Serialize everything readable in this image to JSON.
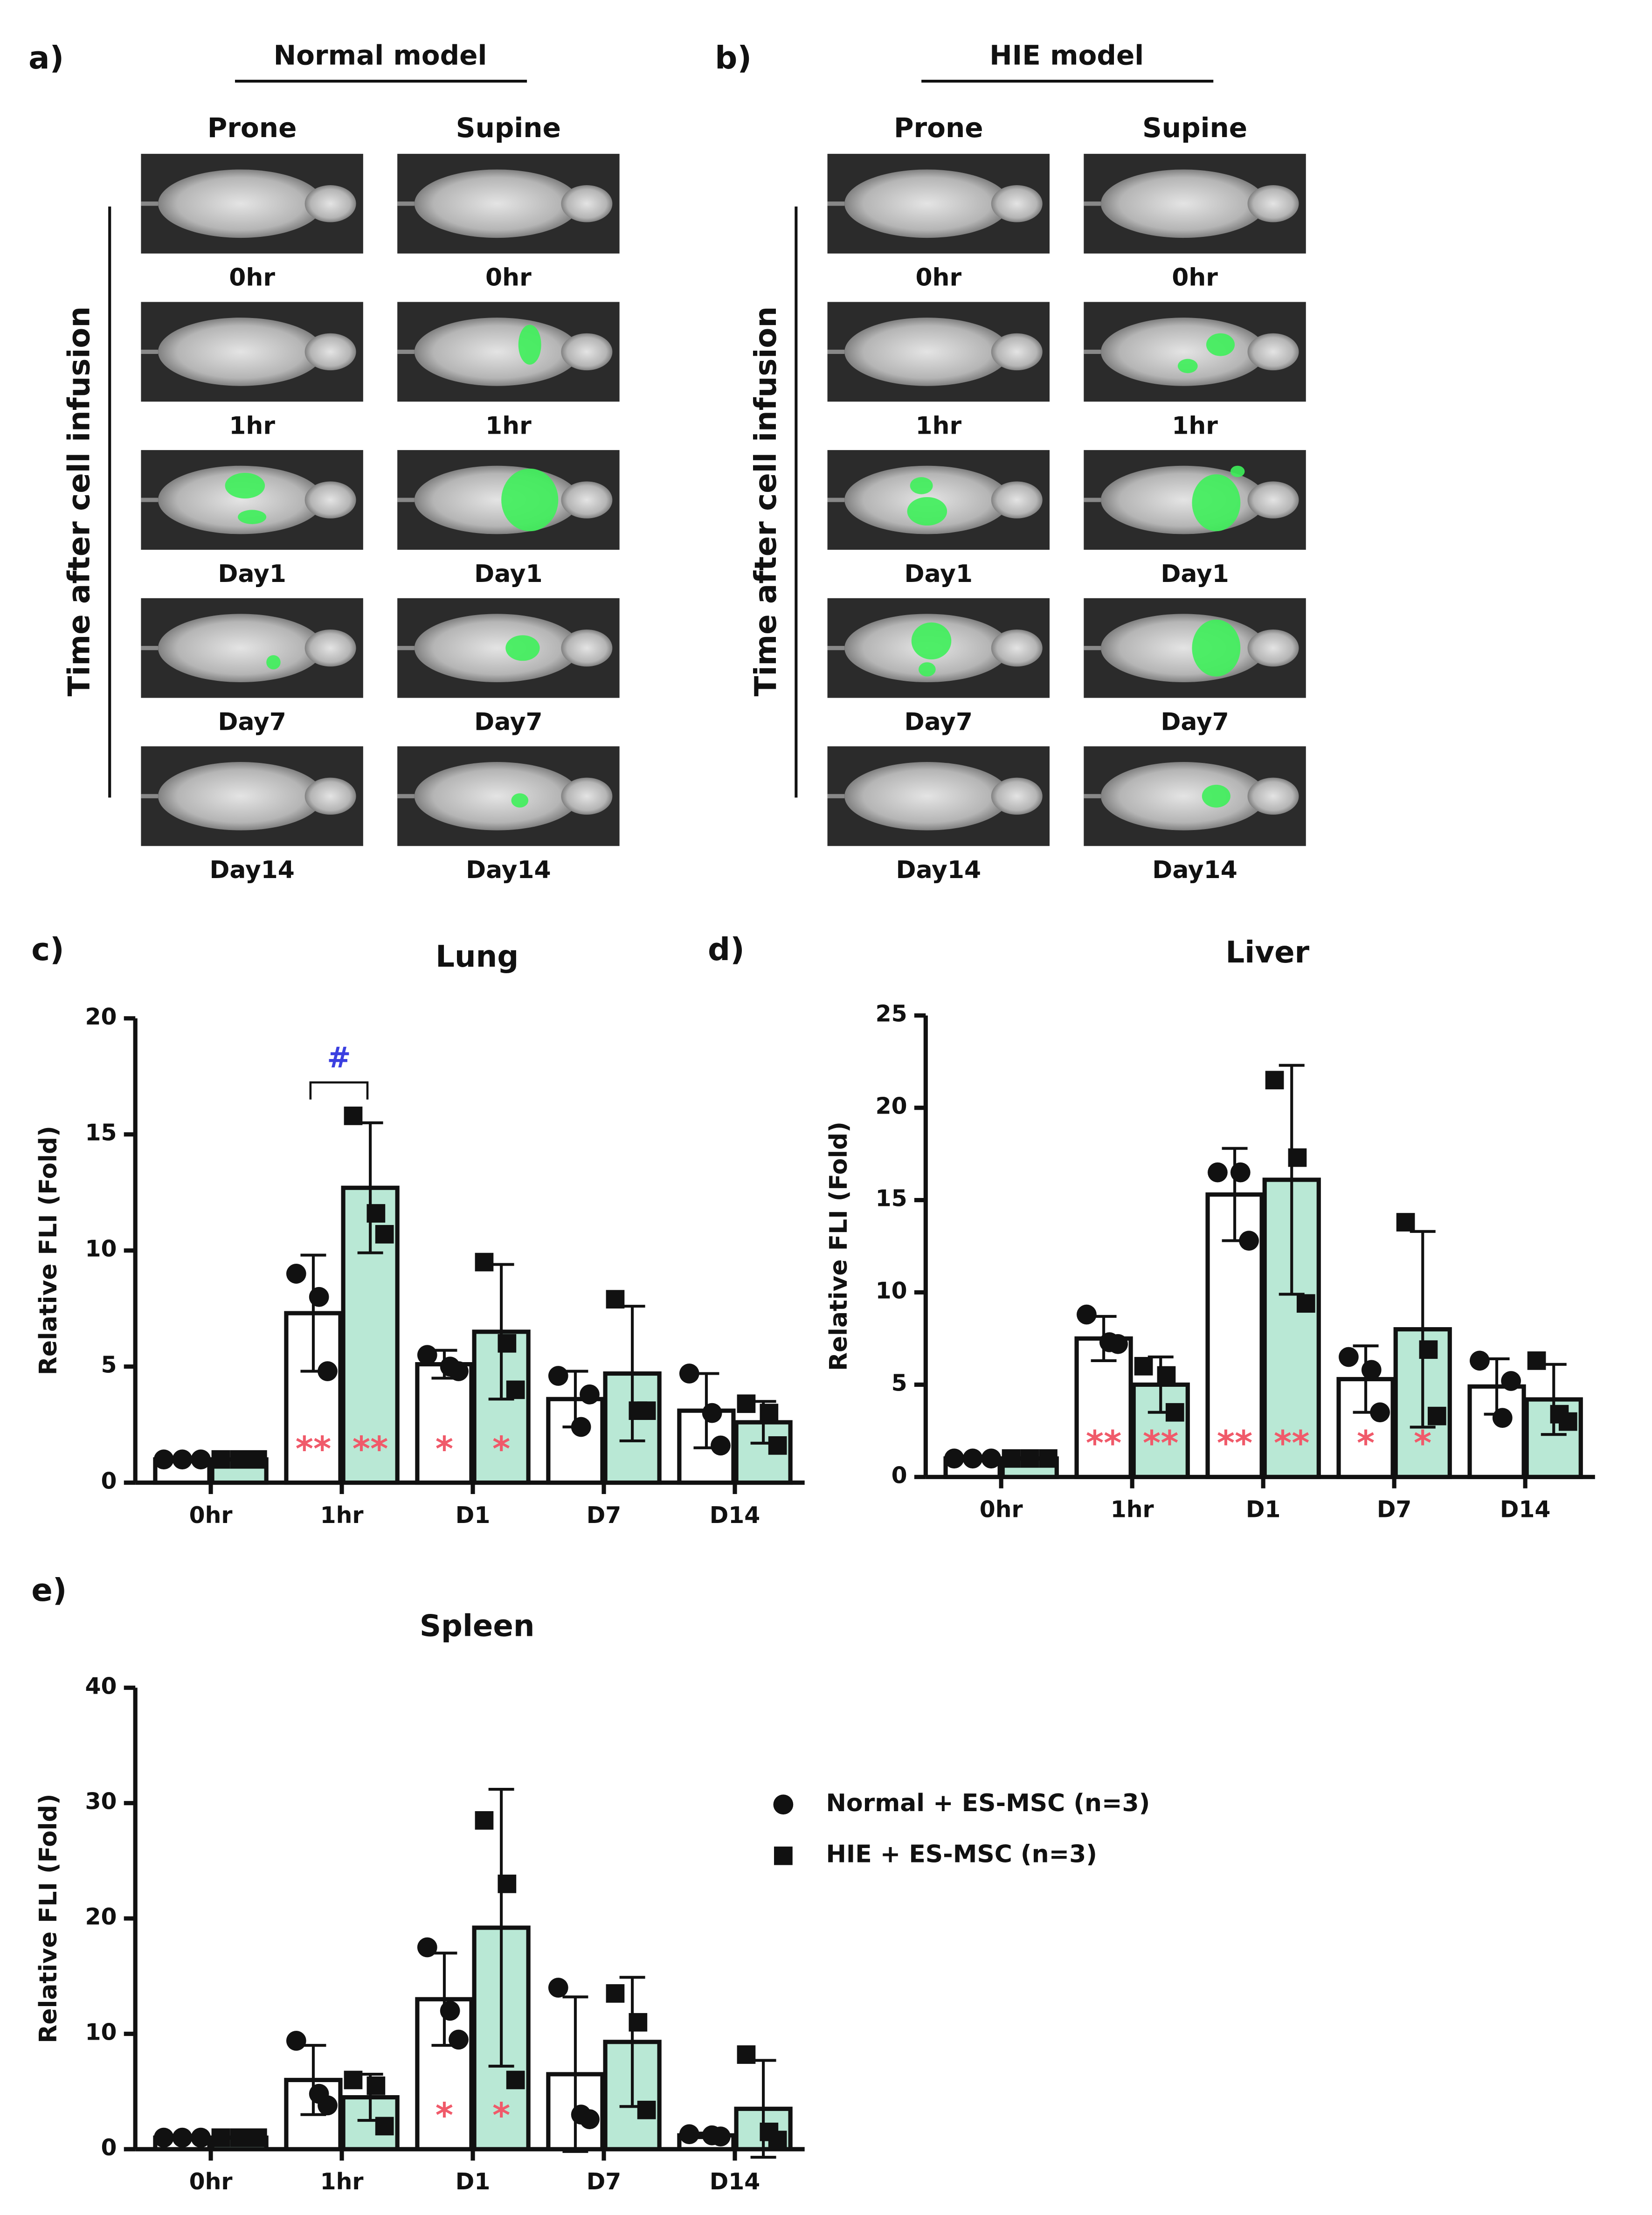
{
  "panels": {
    "a": {
      "label": "a)",
      "title": "Normal model",
      "columns": [
        "Prone",
        "Supine"
      ],
      "rows": [
        "0hr",
        "1hr",
        "Day1",
        "Day7",
        "Day14"
      ],
      "axis_label": "Time after cell infusion"
    },
    "b": {
      "label": "b)",
      "title": "HIE model",
      "columns": [
        "Prone",
        "Supine"
      ],
      "rows": [
        "0hr",
        "1hr",
        "Day1",
        "Day7",
        "Day14"
      ],
      "axis_label": "Time after cell infusion"
    }
  },
  "chart_data": [
    {
      "type": "bar",
      "panel_label": "c)",
      "title": "Lung",
      "ylabel": "Relative FLI (Fold)",
      "categories": [
        "0hr",
        "1hr",
        "D1",
        "D7",
        "D14"
      ],
      "ylim": [
        0,
        20
      ],
      "yticks": [
        0,
        5,
        10,
        15,
        20
      ],
      "annotation": "#",
      "annotation_color": "#3b3fe0",
      "series": [
        {
          "color": "#ffffff",
          "marker": "circle",
          "values": [
            1,
            7.3,
            5.1,
            3.6,
            3.1
          ],
          "errors": [
            0,
            2.5,
            0.6,
            1.2,
            1.6
          ],
          "points": [
            [
              1,
              1,
              1
            ],
            [
              9.0,
              8.0,
              4.8
            ],
            [
              5.5,
              5.0,
              4.8
            ],
            [
              4.6,
              2.4,
              3.8
            ],
            [
              4.7,
              3.0,
              1.6
            ]
          ],
          "significance": [
            null,
            "**",
            "*",
            null,
            null
          ]
        },
        {
          "color": "#b9e8d5",
          "marker": "square",
          "values": [
            1,
            12.7,
            6.5,
            4.7,
            2.6
          ],
          "errors": [
            0,
            2.8,
            2.9,
            2.9,
            0.9
          ],
          "points": [
            [
              1,
              1,
              1
            ],
            [
              15.8,
              11.6,
              10.7
            ],
            [
              9.5,
              6.0,
              4.0
            ],
            [
              7.9,
              3.1,
              3.1
            ],
            [
              3.4,
              3.0,
              1.6
            ]
          ],
          "significance": [
            null,
            "**",
            "*",
            null,
            null
          ]
        }
      ]
    },
    {
      "type": "bar",
      "panel_label": "d)",
      "title": "Liver",
      "ylabel": "Relative FLI (Fold)",
      "categories": [
        "0hr",
        "1hr",
        "D1",
        "D7",
        "D14"
      ],
      "ylim": [
        0,
        25
      ],
      "yticks": [
        0,
        5,
        10,
        15,
        20,
        25
      ],
      "series": [
        {
          "color": "#ffffff",
          "marker": "circle",
          "values": [
            1,
            7.5,
            15.3,
            5.3,
            4.9
          ],
          "errors": [
            0,
            1.2,
            2.5,
            1.8,
            1.5
          ],
          "points": [
            [
              1,
              1,
              1
            ],
            [
              8.8,
              7.3,
              7.2
            ],
            [
              16.5,
              16.5,
              12.8
            ],
            [
              6.5,
              5.8,
              3.5
            ],
            [
              6.3,
              3.2,
              5.2
            ]
          ],
          "significance": [
            null,
            "**",
            "**",
            "*",
            null
          ]
        },
        {
          "color": "#b9e8d5",
          "marker": "square",
          "values": [
            1,
            5.0,
            16.1,
            8.0,
            4.2
          ],
          "errors": [
            0,
            1.5,
            6.2,
            5.3,
            1.9
          ],
          "points": [
            [
              1,
              1,
              1
            ],
            [
              6.0,
              5.5,
              3.5
            ],
            [
              21.5,
              17.3,
              9.4
            ],
            [
              13.8,
              6.9,
              3.3
            ],
            [
              6.3,
              3.4,
              3.0
            ]
          ],
          "significance": [
            null,
            "**",
            "**",
            "*",
            null
          ]
        }
      ]
    },
    {
      "type": "bar",
      "panel_label": "e)",
      "title": "Spleen",
      "ylabel": "Relative FLI (Fold)",
      "categories": [
        "0hr",
        "1hr",
        "D1",
        "D7",
        "D14"
      ],
      "ylim": [
        0,
        40
      ],
      "yticks": [
        0,
        10,
        20,
        30,
        40
      ],
      "legend": "right",
      "series": [
        {
          "name": "Normal + ES-MSC (n=3)",
          "color": "#ffffff",
          "marker": "circle",
          "values": [
            1,
            6.0,
            13.0,
            6.5,
            1.2
          ],
          "errors": [
            0,
            3.0,
            4.0,
            6.7,
            0.2
          ],
          "points": [
            [
              1,
              1,
              1
            ],
            [
              9.4,
              4.8,
              3.8
            ],
            [
              17.5,
              12.0,
              9.5
            ],
            [
              14.0,
              3.0,
              2.6
            ],
            [
              1.3,
              1.2,
              1.1
            ]
          ],
          "significance": [
            null,
            null,
            "*",
            null,
            null
          ]
        },
        {
          "name": "HIE + ES-MSC (n=3)",
          "color": "#b9e8d5",
          "marker": "square",
          "values": [
            1,
            4.5,
            19.2,
            9.3,
            3.5
          ],
          "errors": [
            0,
            2.0,
            12.0,
            5.6,
            4.2
          ],
          "points": [
            [
              1,
              1,
              1
            ],
            [
              6.0,
              5.5,
              2.0
            ],
            [
              28.5,
              23.0,
              6.0
            ],
            [
              13.5,
              11.0,
              3.4
            ],
            [
              8.2,
              1.5,
              0.8
            ]
          ],
          "significance": [
            null,
            null,
            "*",
            null,
            null
          ]
        }
      ]
    }
  ]
}
